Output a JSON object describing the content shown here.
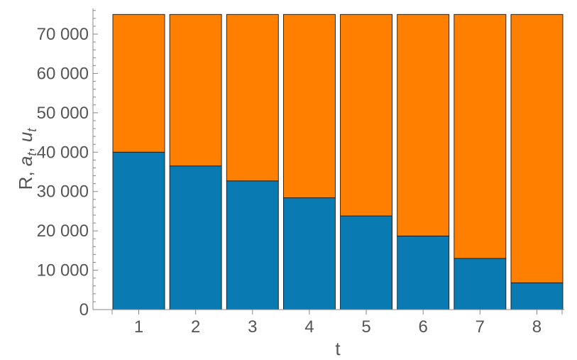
{
  "chart_data": {
    "type": "bar",
    "stacked": true,
    "categories": [
      "1",
      "2",
      "3",
      "4",
      "5",
      "6",
      "7",
      "8"
    ],
    "series": [
      {
        "color": "#0a7bb2",
        "values": [
          40000,
          36500,
          32700,
          28400,
          23800,
          18700,
          13000,
          6800
        ]
      },
      {
        "color": "#ff8000",
        "values": [
          35000,
          38500,
          42300,
          46600,
          51200,
          56300,
          62000,
          68200
        ]
      }
    ],
    "xlabel": "t",
    "ylabel_parts": {
      "lead": "R, ",
      "a": "a",
      "a_sub": "t",
      "sep": ", ",
      "u": "u",
      "u_sub": "t"
    },
    "ylim": [
      0,
      76500
    ],
    "yticks": [
      0,
      10000,
      20000,
      30000,
      40000,
      50000,
      60000,
      70000
    ],
    "ytick_labels": [
      "0",
      "10 000",
      "20 000",
      "30 000",
      "40 000",
      "50 000",
      "60 000",
      "70 000"
    ],
    "xtick_labels": [
      "1",
      "2",
      "3",
      "4",
      "5",
      "6",
      "7",
      "8"
    ],
    "grid": false,
    "legend": "none"
  }
}
